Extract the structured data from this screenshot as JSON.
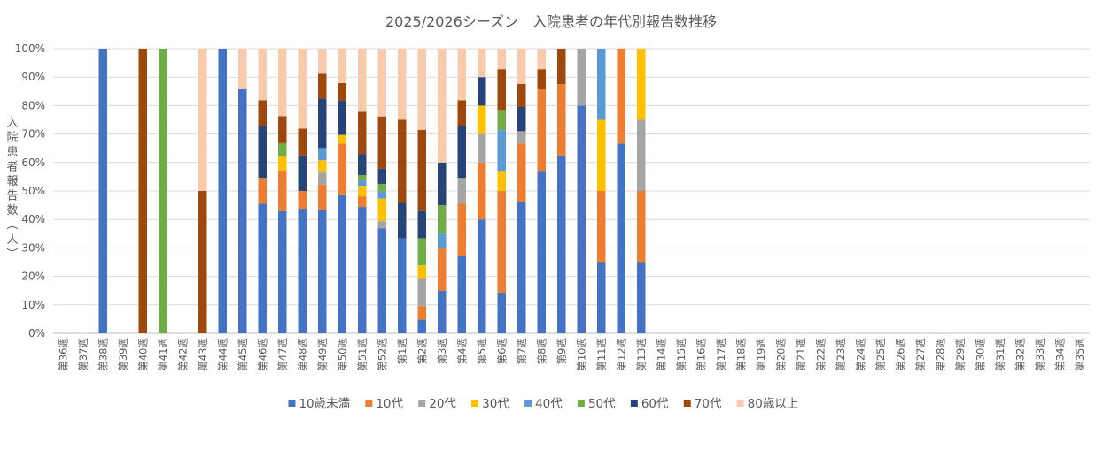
{
  "chart_data": {
    "type": "bar",
    "stacked": "percent",
    "title": "2025/2026シーズン　入院患者の年代別報告数推移",
    "ylabel": "入院患者報告数（人）",
    "xlabel": "",
    "ylim": [
      0,
      100
    ],
    "yticks": [
      "0%",
      "10%",
      "20%",
      "30%",
      "40%",
      "50%",
      "60%",
      "70%",
      "80%",
      "90%",
      "100%"
    ],
    "legend_position": "bottom",
    "categories": [
      "第36週",
      "第37週",
      "第38週",
      "第39週",
      "第40週",
      "第41週",
      "第42週",
      "第43週",
      "第44週",
      "第45週",
      "第46週",
      "第47週",
      "第48週",
      "第49週",
      "第50週",
      "第51週",
      "第52週",
      "第1週",
      "第2週",
      "第3週",
      "第4週",
      "第5週",
      "第6週",
      "第7週",
      "第8週",
      "第9週",
      "第10週",
      "第11週",
      "第12週",
      "第13週",
      "第14週",
      "第15週",
      "第16週",
      "第17週",
      "第18週",
      "第19週",
      "第20週",
      "第21週",
      "第22週",
      "第23週",
      "第24週",
      "第25週",
      "第26週",
      "第27週",
      "第28週",
      "第29週",
      "第30週",
      "第31週",
      "第32週",
      "第33週",
      "第34週",
      "第35週"
    ],
    "series": [
      {
        "name": "10歳未満",
        "color": "#4472C4",
        "values": [
          0,
          0,
          100,
          0,
          0,
          0,
          0,
          0,
          100,
          85.7,
          45.5,
          42.9,
          43.8,
          43.5,
          48.5,
          44.4,
          36.8,
          33.3,
          4.8,
          15,
          27.3,
          40,
          14.3,
          46.2,
          57.1,
          62.5,
          80,
          25,
          66.7,
          25,
          0,
          0,
          0,
          0,
          0,
          0,
          0,
          0,
          0,
          0,
          0,
          0,
          0,
          0,
          0,
          0,
          0,
          0,
          0,
          0,
          0,
          0
        ]
      },
      {
        "name": "10代",
        "color": "#ED7D31",
        "values": [
          0,
          0,
          0,
          0,
          0,
          0,
          0,
          0,
          0,
          0,
          9.1,
          14.3,
          6.2,
          8.7,
          18.2,
          3.7,
          0,
          0,
          4.8,
          15,
          18.2,
          20,
          35.7,
          20.5,
          28.6,
          25,
          0,
          25,
          33.3,
          25,
          0,
          0,
          0,
          0,
          0,
          0,
          0,
          0,
          0,
          0,
          0,
          0,
          0,
          0,
          0,
          0,
          0,
          0,
          0,
          0,
          0,
          0
        ]
      },
      {
        "name": "20代",
        "color": "#A5A5A5",
        "values": [
          0,
          0,
          0,
          0,
          0,
          0,
          0,
          0,
          0,
          0,
          0,
          0,
          0,
          4.3,
          0,
          0,
          2.6,
          0,
          9.5,
          0,
          9.1,
          10,
          0,
          4.3,
          0,
          0,
          20,
          0,
          0,
          25,
          0,
          0,
          0,
          0,
          0,
          0,
          0,
          0,
          0,
          0,
          0,
          0,
          0,
          0,
          0,
          0,
          0,
          0,
          0,
          0,
          0,
          0
        ]
      },
      {
        "name": "30代",
        "color": "#FFC000",
        "values": [
          0,
          0,
          0,
          0,
          0,
          0,
          0,
          0,
          0,
          0,
          0,
          4.8,
          0,
          4.3,
          3,
          3.7,
          7.9,
          0,
          4.8,
          0,
          0,
          10,
          7.1,
          0,
          0,
          0,
          0,
          25,
          0,
          25,
          0,
          0,
          0,
          0,
          0,
          0,
          0,
          0,
          0,
          0,
          0,
          0,
          0,
          0,
          0,
          0,
          0,
          0,
          0,
          0,
          0,
          0
        ]
      },
      {
        "name": "40代",
        "color": "#5B9BD5",
        "values": [
          0,
          0,
          0,
          0,
          0,
          0,
          0,
          0,
          0,
          0,
          0,
          0,
          0,
          4.3,
          0,
          1.9,
          2.6,
          0,
          0,
          5,
          0,
          0,
          14.3,
          0,
          0,
          0,
          0,
          25,
          0,
          0,
          0,
          0,
          0,
          0,
          0,
          0,
          0,
          0,
          0,
          0,
          0,
          0,
          0,
          0,
          0,
          0,
          0,
          0,
          0,
          0,
          0,
          0
        ]
      },
      {
        "name": "50代",
        "color": "#70AD47",
        "values": [
          0,
          0,
          0,
          0,
          0,
          100,
          0,
          0,
          0,
          0,
          0,
          4.8,
          0,
          0,
          0,
          1.9,
          2.6,
          0,
          9.5,
          10,
          0,
          0,
          7.1,
          0,
          0,
          0,
          0,
          0,
          0,
          0,
          0,
          0,
          0,
          0,
          0,
          0,
          0,
          0,
          0,
          0,
          0,
          0,
          0,
          0,
          0,
          0,
          0,
          0,
          0,
          0,
          0,
          0
        ]
      },
      {
        "name": "60代",
        "color": "#264478",
        "values": [
          0,
          0,
          0,
          0,
          0,
          0,
          0,
          0,
          0,
          0,
          18.2,
          0,
          12.5,
          17.4,
          12.1,
          7.4,
          5.3,
          12.5,
          9.5,
          15,
          18.2,
          10,
          0,
          8.5,
          0,
          0,
          0,
          0,
          0,
          0,
          0,
          0,
          0,
          0,
          0,
          0,
          0,
          0,
          0,
          0,
          0,
          0,
          0,
          0,
          0,
          0,
          0,
          0,
          0,
          0,
          0,
          0
        ]
      },
      {
        "name": "70代",
        "color": "#9E480E",
        "values": [
          0,
          0,
          0,
          0,
          100,
          0,
          0,
          50,
          0,
          0,
          9.1,
          9.5,
          9.4,
          8.7,
          6.1,
          14.8,
          18.4,
          29.2,
          28.6,
          0,
          9.1,
          0,
          14.3,
          8.1,
          7.1,
          12.5,
          0,
          0,
          0,
          0,
          0,
          0,
          0,
          0,
          0,
          0,
          0,
          0,
          0,
          0,
          0,
          0,
          0,
          0,
          0,
          0,
          0,
          0,
          0,
          0,
          0,
          0
        ]
      },
      {
        "name": "80歳以上",
        "color": "#F8CBAD",
        "values": [
          0,
          0,
          0,
          0,
          0,
          0,
          0,
          50,
          0,
          14.3,
          18.2,
          23.8,
          28.1,
          8.7,
          12.1,
          22.2,
          23.7,
          25,
          28.6,
          40,
          18.2,
          10,
          7.1,
          12.5,
          7.1,
          0,
          0,
          0,
          0,
          0,
          0,
          0,
          0,
          0,
          0,
          0,
          0,
          0,
          0,
          0,
          0,
          0,
          0,
          0,
          0,
          0,
          0,
          0,
          0,
          0,
          0,
          0
        ]
      }
    ]
  }
}
